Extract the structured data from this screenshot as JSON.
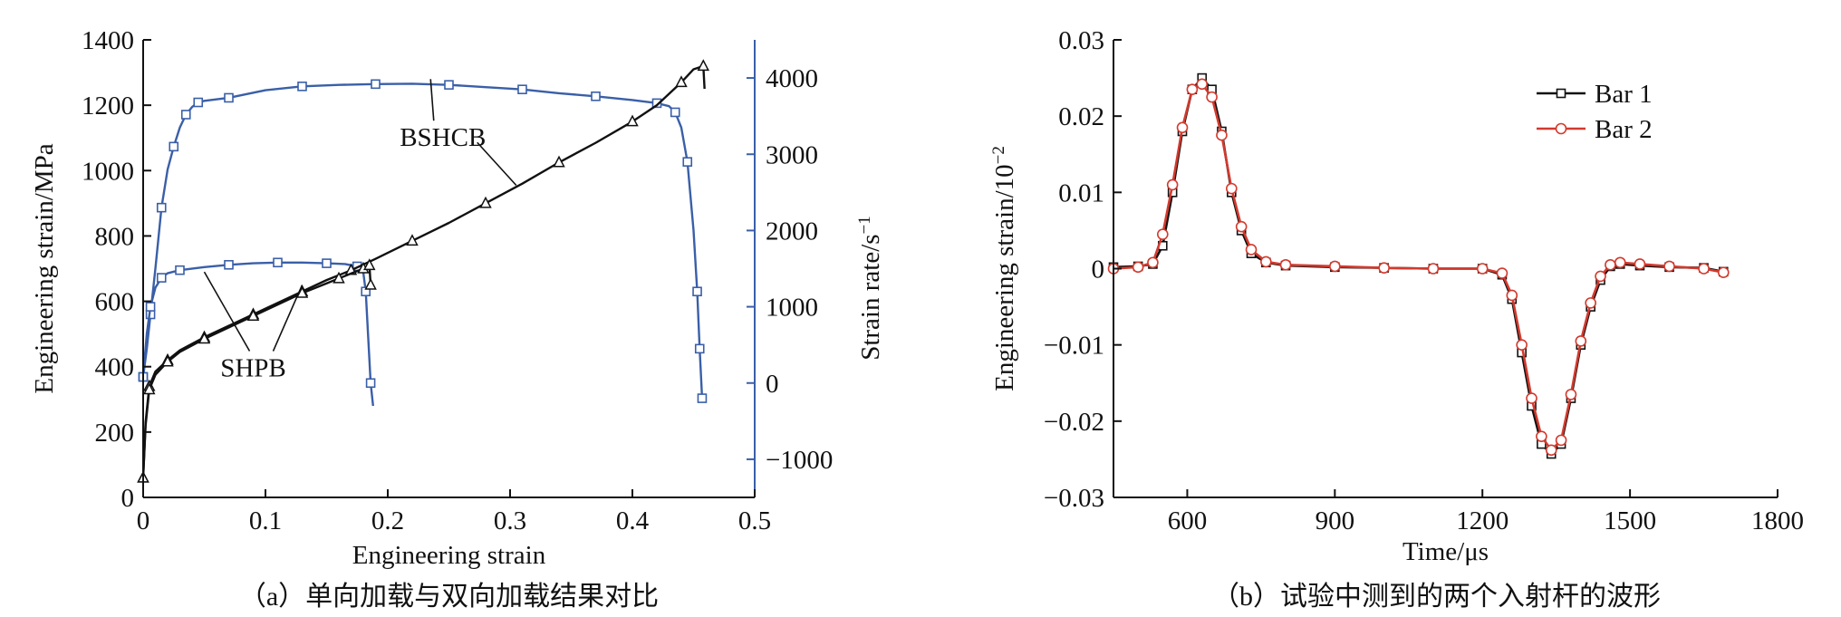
{
  "chart_data": [
    {
      "type": "line",
      "caption": "（a）单向加载与双向加载结果对比",
      "xlabel": "Engineering strain",
      "ylabel": "Engineering strain/MPa",
      "y2label": "Strain rate/s",
      "y2label_sup": "−1",
      "xlim": [
        0,
        0.5
      ],
      "ylim": [
        0,
        1400
      ],
      "y2lim": [
        -1500,
        4500
      ],
      "xticks": [
        "0",
        "0.1",
        "0.2",
        "0.3",
        "0.4",
        "0.5"
      ],
      "xtick_values": [
        0,
        0.1,
        0.2,
        0.3,
        0.4,
        0.5
      ],
      "yticks": [
        "0",
        "200",
        "400",
        "600",
        "800",
        "1000",
        "1200",
        "1400"
      ],
      "ytick_values": [
        0,
        200,
        400,
        600,
        800,
        1000,
        1200,
        1400
      ],
      "y2ticks": [
        "−1000",
        "0",
        "1000",
        "2000",
        "3000",
        "4000"
      ],
      "y2tick_values": [
        -1000,
        0,
        1000,
        2000,
        3000,
        4000
      ],
      "annotations": [
        {
          "text": "BSHCB",
          "at": [
            0.245,
            1075
          ],
          "targets": [
            [
              0.235,
              1280
            ],
            [
              0.305,
              955
            ]
          ]
        },
        {
          "text": "SHPB",
          "at": [
            0.09,
            370
          ],
          "targets": [
            [
              0.05,
              690
            ],
            [
              0.13,
              650
            ]
          ]
        }
      ],
      "series": [
        {
          "axis": "right",
          "color": "#3a5fa8",
          "marker": "square",
          "values": [
            [
              0.0,
              80
            ],
            [
              0.003,
              450
            ],
            [
              0.006,
              900
            ],
            [
              0.01,
              1500
            ],
            [
              0.015,
              2300
            ],
            [
              0.02,
              2800
            ],
            [
              0.025,
              3100
            ],
            [
              0.03,
              3350
            ],
            [
              0.035,
              3520
            ],
            [
              0.04,
              3620
            ],
            [
              0.045,
              3680
            ],
            [
              0.05,
              3700
            ],
            [
              0.07,
              3740
            ],
            [
              0.1,
              3840
            ],
            [
              0.13,
              3890
            ],
            [
              0.16,
              3910
            ],
            [
              0.19,
              3920
            ],
            [
              0.22,
              3925
            ],
            [
              0.25,
              3910
            ],
            [
              0.28,
              3880
            ],
            [
              0.31,
              3850
            ],
            [
              0.34,
              3800
            ],
            [
              0.37,
              3760
            ],
            [
              0.4,
              3710
            ],
            [
              0.42,
              3670
            ],
            [
              0.43,
              3630
            ],
            [
              0.435,
              3550
            ],
            [
              0.44,
              3350
            ],
            [
              0.445,
              2900
            ],
            [
              0.45,
              2000
            ],
            [
              0.453,
              1200
            ],
            [
              0.455,
              450
            ],
            [
              0.457,
              -200
            ]
          ]
        },
        {
          "axis": "right",
          "color": "#3a5fa8",
          "marker": "square",
          "values": [
            [
              0.0,
              80
            ],
            [
              0.003,
              650
            ],
            [
              0.006,
              1000
            ],
            [
              0.01,
              1250
            ],
            [
              0.015,
              1380
            ],
            [
              0.02,
              1440
            ],
            [
              0.03,
              1480
            ],
            [
              0.05,
              1520
            ],
            [
              0.07,
              1550
            ],
            [
              0.09,
              1570
            ],
            [
              0.11,
              1580
            ],
            [
              0.13,
              1580
            ],
            [
              0.15,
              1570
            ],
            [
              0.165,
              1560
            ],
            [
              0.175,
              1530
            ],
            [
              0.18,
              1450
            ],
            [
              0.182,
              1200
            ],
            [
              0.184,
              600
            ],
            [
              0.186,
              0
            ],
            [
              0.188,
              -300
            ]
          ]
        },
        {
          "axis": "left",
          "color": "#111111",
          "marker": "triangle",
          "values": [
            [
              0.0,
              60
            ],
            [
              0.002,
              230
            ],
            [
              0.005,
              340
            ],
            [
              0.01,
              385
            ],
            [
              0.02,
              420
            ],
            [
              0.03,
              450
            ],
            [
              0.05,
              490
            ],
            [
              0.07,
              525
            ],
            [
              0.09,
              560
            ],
            [
              0.11,
              595
            ],
            [
              0.13,
              630
            ],
            [
              0.15,
              665
            ],
            [
              0.17,
              695
            ],
            [
              0.19,
              730
            ],
            [
              0.22,
              785
            ],
            [
              0.25,
              840
            ],
            [
              0.28,
              900
            ],
            [
              0.31,
              960
            ],
            [
              0.34,
              1025
            ],
            [
              0.37,
              1085
            ],
            [
              0.4,
              1150
            ],
            [
              0.42,
              1200
            ],
            [
              0.44,
              1270
            ],
            [
              0.45,
              1310
            ],
            [
              0.458,
              1320
            ],
            [
              0.459,
              1250
            ]
          ]
        },
        {
          "axis": "left",
          "color": "#111111",
          "marker": "triangle",
          "values": [
            [
              0.0,
              60
            ],
            [
              0.002,
              220
            ],
            [
              0.005,
              330
            ],
            [
              0.01,
              375
            ],
            [
              0.02,
              415
            ],
            [
              0.03,
              445
            ],
            [
              0.05,
              485
            ],
            [
              0.07,
              520
            ],
            [
              0.09,
              555
            ],
            [
              0.11,
              590
            ],
            [
              0.13,
              625
            ],
            [
              0.15,
              655
            ],
            [
              0.16,
              670
            ],
            [
              0.17,
              685
            ],
            [
              0.18,
              700
            ],
            [
              0.185,
              710
            ],
            [
              0.186,
              650
            ]
          ]
        }
      ]
    },
    {
      "type": "line",
      "caption": "（b）试验中测到的两个入射杆的波形",
      "xlabel": "Time/μs",
      "ylabel": "Engineering strain/10",
      "ylabel_sup": "−2",
      "xlim": [
        450,
        1800
      ],
      "ylim": [
        -0.03,
        0.03
      ],
      "xticks": [
        "600",
        "900",
        "1200",
        "1500",
        "1800"
      ],
      "xtick_values": [
        600,
        900,
        1200,
        1500,
        1800
      ],
      "yticks": [
        "−0.03",
        "−0.02",
        "−0.01",
        "0",
        "0.01",
        "0.02",
        "0.03"
      ],
      "ytick_values": [
        -0.03,
        -0.02,
        -0.01,
        0,
        0.01,
        0.02,
        0.03
      ],
      "legend": {
        "position": "top-right"
      },
      "series": [
        {
          "name": "Bar 1",
          "color": "#111111",
          "marker": "square",
          "values": [
            [
              450,
              0.0002
            ],
            [
              500,
              0.0003
            ],
            [
              530,
              0.0006
            ],
            [
              550,
              0.003
            ],
            [
              570,
              0.01
            ],
            [
              590,
              0.018
            ],
            [
              610,
              0.0235
            ],
            [
              630,
              0.025
            ],
            [
              650,
              0.0235
            ],
            [
              670,
              0.018
            ],
            [
              690,
              0.01
            ],
            [
              710,
              0.005
            ],
            [
              730,
              0.002
            ],
            [
              760,
              0.0008
            ],
            [
              800,
              0.0004
            ],
            [
              900,
              0.0002
            ],
            [
              1000,
              0.0001
            ],
            [
              1100,
              0.0
            ],
            [
              1200,
              0.0
            ],
            [
              1240,
              -0.0008
            ],
            [
              1260,
              -0.004
            ],
            [
              1280,
              -0.011
            ],
            [
              1300,
              -0.018
            ],
            [
              1320,
              -0.023
            ],
            [
              1340,
              -0.0243
            ],
            [
              1360,
              -0.023
            ],
            [
              1380,
              -0.017
            ],
            [
              1400,
              -0.01
            ],
            [
              1420,
              -0.005
            ],
            [
              1440,
              -0.0015
            ],
            [
              1460,
              0.0003
            ],
            [
              1480,
              0.0006
            ],
            [
              1520,
              0.0004
            ],
            [
              1580,
              0.0002
            ],
            [
              1650,
              0.0001
            ],
            [
              1690,
              -0.0004
            ]
          ]
        },
        {
          "name": "Bar 2",
          "color": "#d23a2e",
          "marker": "circle",
          "values": [
            [
              450,
              0.0
            ],
            [
              500,
              0.0002
            ],
            [
              530,
              0.0008
            ],
            [
              550,
              0.0045
            ],
            [
              570,
              0.011
            ],
            [
              590,
              0.0185
            ],
            [
              610,
              0.0235
            ],
            [
              630,
              0.0242
            ],
            [
              650,
              0.0225
            ],
            [
              670,
              0.0175
            ],
            [
              690,
              0.0105
            ],
            [
              710,
              0.0055
            ],
            [
              730,
              0.0025
            ],
            [
              760,
              0.0009
            ],
            [
              800,
              0.0005
            ],
            [
              900,
              0.0003
            ],
            [
              1000,
              0.0001
            ],
            [
              1100,
              0.0
            ],
            [
              1200,
              0.0
            ],
            [
              1240,
              -0.0006
            ],
            [
              1260,
              -0.0035
            ],
            [
              1280,
              -0.01
            ],
            [
              1300,
              -0.017
            ],
            [
              1320,
              -0.022
            ],
            [
              1340,
              -0.0238
            ],
            [
              1360,
              -0.0225
            ],
            [
              1380,
              -0.0165
            ],
            [
              1400,
              -0.0095
            ],
            [
              1420,
              -0.0045
            ],
            [
              1440,
              -0.001
            ],
            [
              1460,
              0.0005
            ],
            [
              1480,
              0.0008
            ],
            [
              1520,
              0.0006
            ],
            [
              1580,
              0.0003
            ],
            [
              1650,
              0.0
            ],
            [
              1690,
              -0.0005
            ]
          ]
        }
      ]
    }
  ]
}
